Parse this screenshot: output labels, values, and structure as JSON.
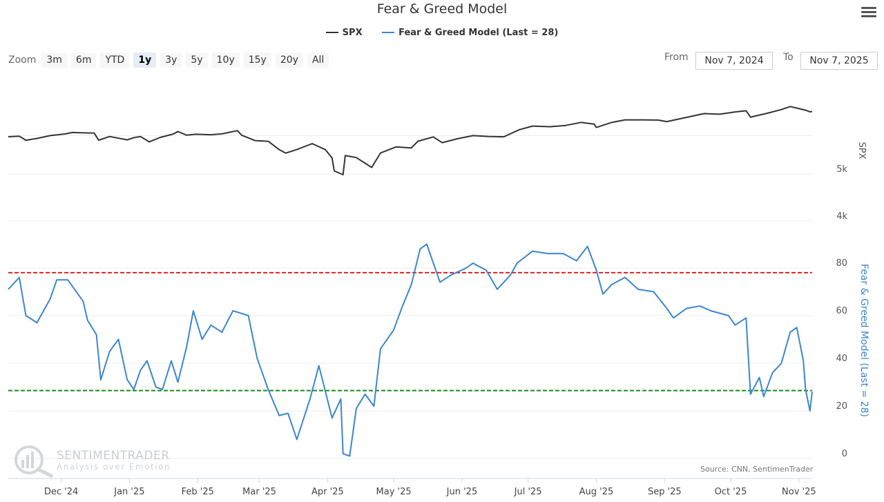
{
  "title": "Fear & Greed Model",
  "legend": [
    {
      "label": "SPX",
      "color": "#333333"
    },
    {
      "label": "Fear & Greed Model (Last = 28)",
      "color": "#3a85d0"
    }
  ],
  "zoom": {
    "label": "Zoom",
    "buttons": [
      "3m",
      "6m",
      "YTD",
      "1y",
      "3y",
      "5y",
      "10y",
      "15y",
      "20y",
      "All"
    ],
    "active": "1y"
  },
  "range": {
    "from_label": "From",
    "from_value": "Nov 7, 2024",
    "to_label": "To",
    "to_value": "Nov 7, 2025"
  },
  "watermark": {
    "name": "SENTIMENTRADER",
    "tagline": "Analysis over Emotion"
  },
  "source": "Source: CNN, SentimenTrader",
  "chart_data": {
    "type": "line",
    "title": "Fear & Greed Model",
    "x_range": [
      "2024-11-07",
      "2025-11-07"
    ],
    "x_ticks": [
      "Dec '24",
      "Jan '25",
      "Feb '25",
      "Mar '25",
      "Apr '25",
      "May '25",
      "Jun '25",
      "Jul '25",
      "Aug '25",
      "Sep '25",
      "Oct '25",
      "Nov '25"
    ],
    "y_axis_spx": {
      "label": "SPX",
      "ticks": [
        "5k",
        "4k"
      ],
      "scale": "log"
    },
    "y_axis_fg": {
      "label": "Fear & Greed Model (Last = 28)",
      "ticks": [
        80,
        60,
        40,
        20,
        0
      ],
      "range": [
        0,
        100
      ]
    },
    "thresholds": [
      {
        "value": 78,
        "color": "#dd2222",
        "style": "dashed"
      },
      {
        "value": 28.5,
        "color": "#1a8a1a",
        "style": "dashed"
      }
    ],
    "grid": true,
    "legend_position": "top-center",
    "series": [
      {
        "name": "SPX",
        "color": "#333333",
        "points": [
          [
            "2024-11-07",
            5970
          ],
          [
            "2024-11-12",
            5985
          ],
          [
            "2024-11-15",
            5870
          ],
          [
            "2024-11-20",
            5920
          ],
          [
            "2024-11-26",
            6000
          ],
          [
            "2024-12-03",
            6050
          ],
          [
            "2024-12-06",
            6090
          ],
          [
            "2024-12-11",
            6080
          ],
          [
            "2024-12-16",
            6074
          ],
          [
            "2024-12-18",
            5872
          ],
          [
            "2024-12-23",
            5975
          ],
          [
            "2024-12-31",
            5882
          ],
          [
            "2025-01-03",
            5942
          ],
          [
            "2025-01-06",
            5976
          ],
          [
            "2025-01-10",
            5827
          ],
          [
            "2025-01-15",
            5950
          ],
          [
            "2025-01-21",
            6049
          ],
          [
            "2025-01-23",
            6119
          ],
          [
            "2025-01-27",
            6012
          ],
          [
            "2025-01-31",
            6040
          ],
          [
            "2025-02-07",
            6026
          ],
          [
            "2025-02-12",
            6051
          ],
          [
            "2025-02-19",
            6144
          ],
          [
            "2025-02-21",
            6013
          ],
          [
            "2025-02-27",
            5861
          ],
          [
            "2025-03-05",
            5842
          ],
          [
            "2025-03-10",
            5614
          ],
          [
            "2025-03-13",
            5522
          ],
          [
            "2025-03-18",
            5615
          ],
          [
            "2025-03-25",
            5776
          ],
          [
            "2025-03-31",
            5612
          ],
          [
            "2025-04-03",
            5397
          ],
          [
            "2025-04-04",
            5074
          ],
          [
            "2025-04-08",
            4983
          ],
          [
            "2025-04-09",
            5457
          ],
          [
            "2025-04-14",
            5406
          ],
          [
            "2025-04-21",
            5158
          ],
          [
            "2025-04-25",
            5525
          ],
          [
            "2025-05-02",
            5687
          ],
          [
            "2025-05-09",
            5660
          ],
          [
            "2025-05-12",
            5844
          ],
          [
            "2025-05-19",
            5963
          ],
          [
            "2025-05-23",
            5803
          ],
          [
            "2025-05-30",
            5912
          ],
          [
            "2025-06-06",
            6000
          ],
          [
            "2025-06-13",
            5977
          ],
          [
            "2025-06-20",
            5968
          ],
          [
            "2025-06-27",
            6173
          ],
          [
            "2025-07-03",
            6279
          ],
          [
            "2025-07-11",
            6260
          ],
          [
            "2025-07-18",
            6297
          ],
          [
            "2025-07-25",
            6389
          ],
          [
            "2025-07-31",
            6339
          ],
          [
            "2025-08-01",
            6238
          ],
          [
            "2025-08-08",
            6389
          ],
          [
            "2025-08-14",
            6468
          ],
          [
            "2025-08-22",
            6466
          ],
          [
            "2025-08-29",
            6460
          ],
          [
            "2025-09-02",
            6415
          ],
          [
            "2025-09-10",
            6532
          ],
          [
            "2025-09-19",
            6664
          ],
          [
            "2025-09-26",
            6643
          ],
          [
            "2025-10-03",
            6715
          ],
          [
            "2025-10-08",
            6753
          ],
          [
            "2025-10-10",
            6552
          ],
          [
            "2025-10-17",
            6664
          ],
          [
            "2025-10-24",
            6791
          ],
          [
            "2025-10-28",
            6890
          ],
          [
            "2025-10-31",
            6840
          ],
          [
            "2025-11-04",
            6771
          ],
          [
            "2025-11-06",
            6720
          ],
          [
            "2025-11-07",
            6728
          ]
        ]
      },
      {
        "name": "Fear & Greed Model (Last = 28)",
        "color": "#3a85d0",
        "points": [
          [
            "2024-11-07",
            71
          ],
          [
            "2024-11-12",
            76
          ],
          [
            "2024-11-15",
            60
          ],
          [
            "2024-11-20",
            57
          ],
          [
            "2024-11-26",
            67
          ],
          [
            "2024-11-29",
            75
          ],
          [
            "2024-12-04",
            75
          ],
          [
            "2024-12-11",
            66
          ],
          [
            "2024-12-13",
            58
          ],
          [
            "2024-12-17",
            52
          ],
          [
            "2024-12-19",
            33
          ],
          [
            "2024-12-23",
            45
          ],
          [
            "2024-12-27",
            50
          ],
          [
            "2024-12-31",
            33
          ],
          [
            "2025-01-03",
            29
          ],
          [
            "2025-01-06",
            37
          ],
          [
            "2025-01-09",
            41
          ],
          [
            "2025-01-13",
            30
          ],
          [
            "2025-01-16",
            29
          ],
          [
            "2025-01-20",
            41
          ],
          [
            "2025-01-23",
            32
          ],
          [
            "2025-01-27",
            47
          ],
          [
            "2025-01-30",
            62
          ],
          [
            "2025-02-03",
            50
          ],
          [
            "2025-02-07",
            56
          ],
          [
            "2025-02-12",
            53
          ],
          [
            "2025-02-17",
            62
          ],
          [
            "2025-02-24",
            60
          ],
          [
            "2025-02-28",
            42
          ],
          [
            "2025-03-05",
            29
          ],
          [
            "2025-03-10",
            18
          ],
          [
            "2025-03-14",
            19
          ],
          [
            "2025-03-18",
            8
          ],
          [
            "2025-03-24",
            25
          ],
          [
            "2025-03-28",
            39
          ],
          [
            "2025-04-03",
            17
          ],
          [
            "2025-04-07",
            25
          ],
          [
            "2025-04-08",
            2
          ],
          [
            "2025-04-11",
            1
          ],
          [
            "2025-04-14",
            21
          ],
          [
            "2025-04-18",
            27
          ],
          [
            "2025-04-22",
            22
          ],
          [
            "2025-04-25",
            46
          ],
          [
            "2025-05-01",
            54
          ],
          [
            "2025-05-05",
            64
          ],
          [
            "2025-05-09",
            73
          ],
          [
            "2025-05-13",
            88
          ],
          [
            "2025-05-16",
            90
          ],
          [
            "2025-05-22",
            74
          ],
          [
            "2025-05-27",
            77
          ],
          [
            "2025-06-03",
            80
          ],
          [
            "2025-06-06",
            82
          ],
          [
            "2025-06-12",
            79
          ],
          [
            "2025-06-17",
            71
          ],
          [
            "2025-06-23",
            77
          ],
          [
            "2025-06-26",
            82
          ],
          [
            "2025-07-03",
            87
          ],
          [
            "2025-07-10",
            86
          ],
          [
            "2025-07-17",
            86
          ],
          [
            "2025-07-23",
            83
          ],
          [
            "2025-07-28",
            89
          ],
          [
            "2025-08-01",
            79
          ],
          [
            "2025-08-04",
            69
          ],
          [
            "2025-08-08",
            73
          ],
          [
            "2025-08-14",
            76
          ],
          [
            "2025-08-20",
            71
          ],
          [
            "2025-08-27",
            70
          ],
          [
            "2025-09-02",
            63
          ],
          [
            "2025-09-05",
            59
          ],
          [
            "2025-09-11",
            63
          ],
          [
            "2025-09-17",
            64
          ],
          [
            "2025-09-22",
            62
          ],
          [
            "2025-09-30",
            60
          ],
          [
            "2025-10-03",
            56
          ],
          [
            "2025-10-08",
            59
          ],
          [
            "2025-10-10",
            27
          ],
          [
            "2025-10-14",
            34
          ],
          [
            "2025-10-16",
            26
          ],
          [
            "2025-10-20",
            36
          ],
          [
            "2025-10-24",
            40
          ],
          [
            "2025-10-28",
            53
          ],
          [
            "2025-10-31",
            55
          ],
          [
            "2025-11-03",
            41
          ],
          [
            "2025-11-04",
            29
          ],
          [
            "2025-11-06",
            20
          ],
          [
            "2025-11-07",
            28
          ]
        ]
      }
    ]
  }
}
